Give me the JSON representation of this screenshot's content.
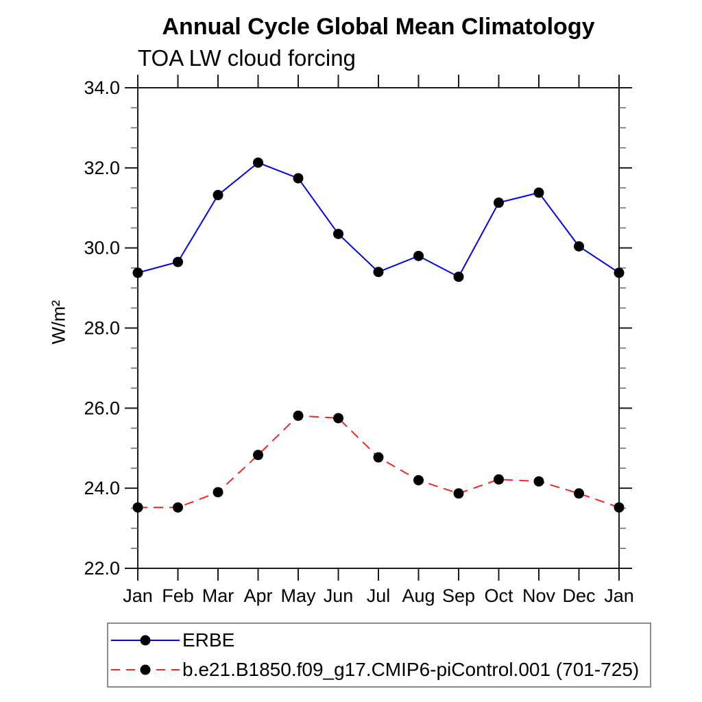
{
  "chart_data": {
    "type": "line",
    "title": "Annual Cycle Global Mean Climatology",
    "subtitle": "TOA LW cloud forcing",
    "ylabel": "W/m²",
    "xlabel": "",
    "x_categories": [
      "Jan",
      "Feb",
      "Mar",
      "Apr",
      "May",
      "Jun",
      "Jul",
      "Aug",
      "Sep",
      "Oct",
      "Nov",
      "Dec",
      "Jan"
    ],
    "ylim": [
      22.0,
      34.0
    ],
    "ytick_major_values": [
      22,
      24,
      26,
      28,
      30,
      32,
      34
    ],
    "ytick_major_labels": [
      "22.0",
      "24.0",
      "26.0",
      "28.0",
      "30.0",
      "32.0",
      "34.0"
    ],
    "ytick_minor_step": 0.5,
    "grid": false,
    "legend_position": "bottom-left-box",
    "series": [
      {
        "name": "ERBE",
        "color": "#0000ee",
        "line_style": "solid",
        "marker": "filled-circle",
        "marker_color": "#000000",
        "values": [
          29.38,
          29.65,
          31.32,
          32.13,
          31.74,
          30.35,
          29.4,
          29.8,
          29.28,
          31.13,
          31.38,
          30.04,
          29.38
        ]
      },
      {
        "name": "b.e21.B1850.f09_g17.CMIP6-piControl.001 (701-725)",
        "color": "#ff1f1f",
        "line_style": "dashed",
        "marker": "filled-circle",
        "marker_color": "#000000",
        "values": [
          23.52,
          23.52,
          23.9,
          24.83,
          25.81,
          25.75,
          24.77,
          24.2,
          23.87,
          24.22,
          24.17,
          23.87,
          23.52
        ]
      }
    ]
  }
}
